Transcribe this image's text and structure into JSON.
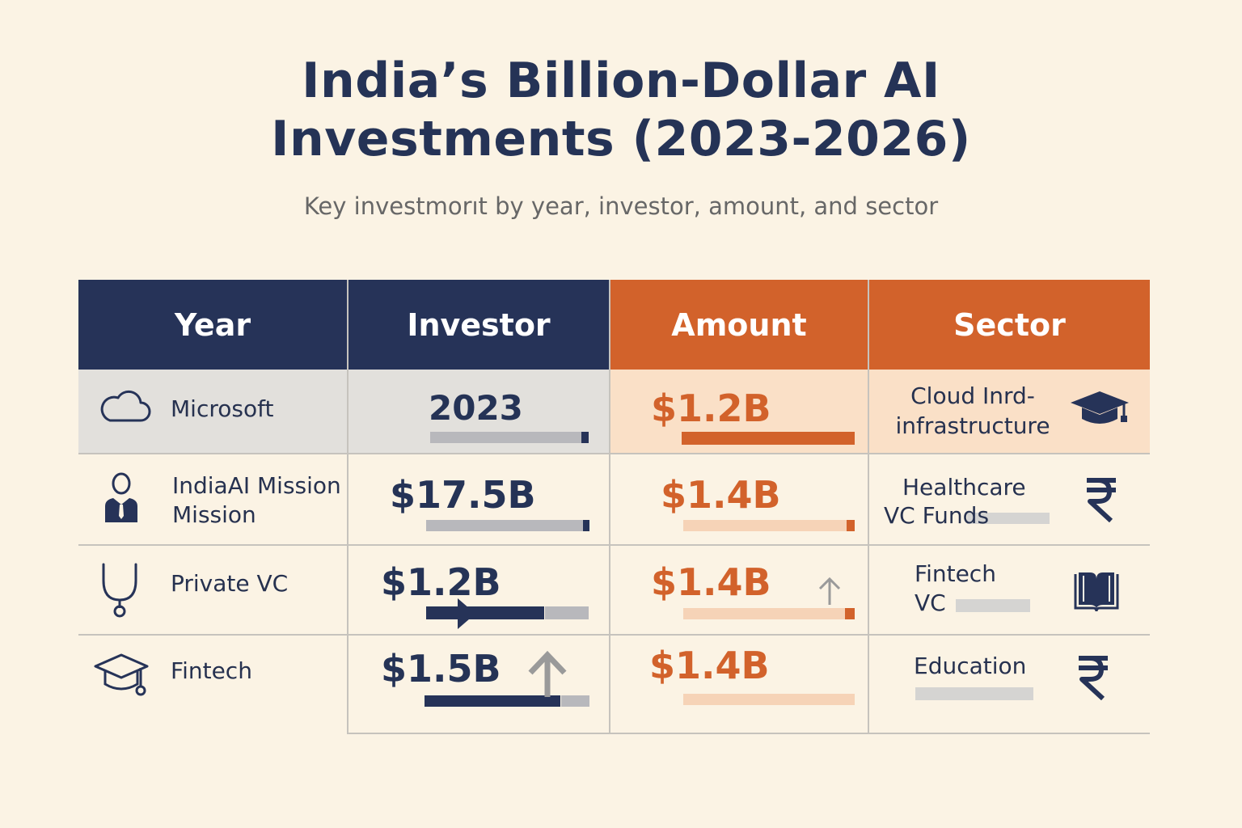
{
  "title_line1": "India’s Billion-Dollar AI",
  "title_line2": "Investments (2023-2026)",
  "subtitle": "Key investmorıt by year, investor, amount, and sector",
  "headers": [
    "Year",
    "Investor",
    "Amount",
    "Sector"
  ],
  "rows": [
    {
      "col1": "Microsoft",
      "col2": "2023",
      "col3": "$1.2B",
      "sector_line1": "Cloud Inrd-",
      "sector_line2": "infrastructure",
      "icon1": "cloud-icon",
      "icon2": "graduation-cap-icon"
    },
    {
      "col1_line1": "IndiaAI Mission",
      "col1_line2": "Mission",
      "col2": "$17.5B",
      "col3": "$1.4B",
      "sector_line1": "Healthcare",
      "sector_line2": "VC Funds",
      "icon1": "person-icon",
      "icon2": "rupee-icon"
    },
    {
      "col1": "Private VC",
      "col2": "$1.2B",
      "col3": "$1.4B",
      "sector_line1": "Fintech",
      "sector_line2": "VC",
      "icon1": "stethoscope-icon",
      "icon2": "book-icon"
    },
    {
      "col1": "Fintech",
      "col2": "$1.5B",
      "col3": "$1.4B",
      "sector_line1": "Education",
      "icon1": "graduation-cap-icon",
      "icon2": "rupee-icon"
    }
  ],
  "colors": {
    "navy": "#263358",
    "orange": "#d2622b",
    "background": "#fbf3e4",
    "row1_gray": "#e2e0dc",
    "row1_peach": "#fae0c7"
  }
}
